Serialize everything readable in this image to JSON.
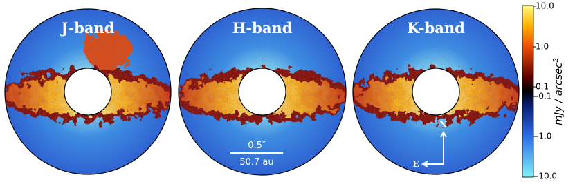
{
  "panels": [
    {
      "title": "J-band"
    },
    {
      "title": "H-band",
      "scale_bar": {
        "angular": "0.5″",
        "physical": "50.7 au"
      }
    },
    {
      "title": "K-band",
      "compass": {
        "north": "N",
        "east": "E"
      }
    }
  ],
  "colorbar": {
    "label": "mJy / arcsec",
    "label_exponent": "2",
    "ticks": [
      "10.0",
      "1.0",
      "0.1",
      "-0.1",
      "-1.0",
      "-10.0"
    ]
  }
}
